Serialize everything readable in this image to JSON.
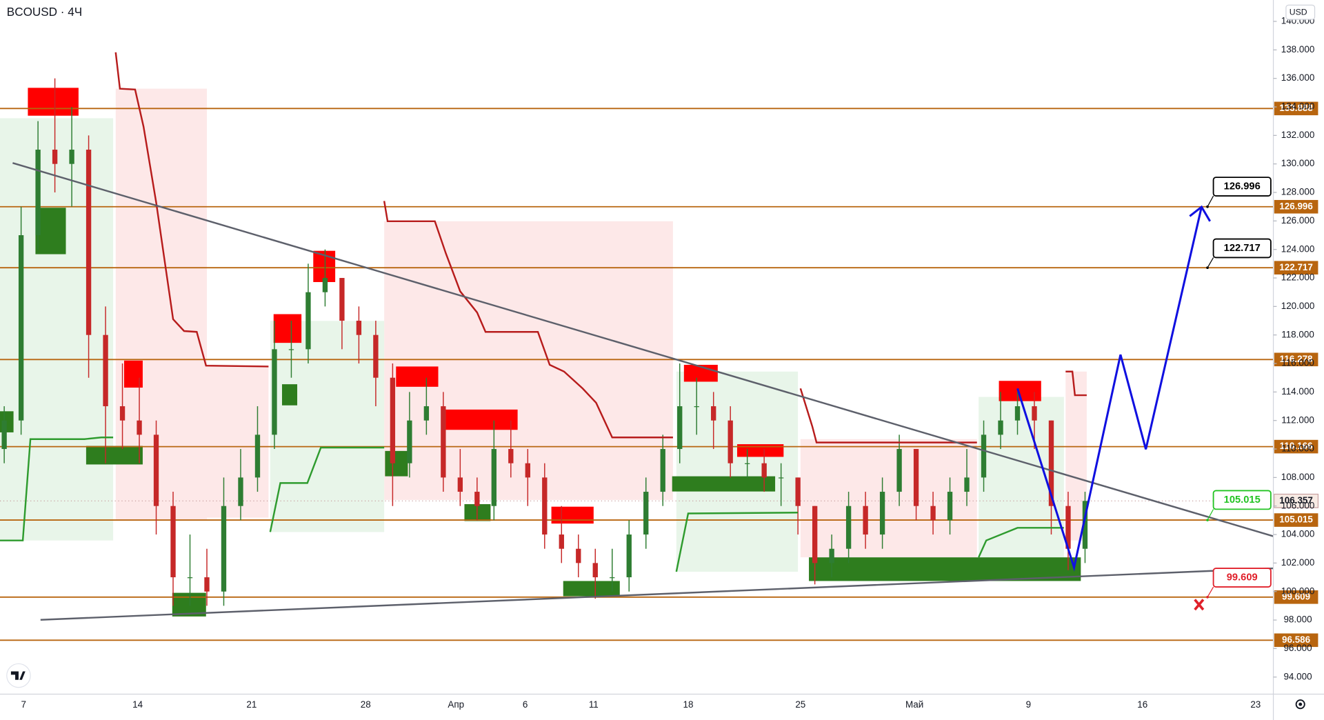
{
  "chart_data": {
    "type": "candlestick",
    "title": "BCOUSD · 4Ч",
    "currency": "USD",
    "x_labels": [
      "7",
      "14",
      "21",
      "28",
      "Апр",
      "6",
      "11",
      "18",
      "25",
      "Май",
      "9",
      "16",
      "23"
    ],
    "ylim": [
      92.8,
      141.5
    ],
    "yticks": [
      {
        "value": 94,
        "label": "94.000"
      },
      {
        "value": 96,
        "label": "96.000"
      },
      {
        "value": 98,
        "label": "98.000"
      },
      {
        "value": 100,
        "label": "100.000"
      },
      {
        "value": 102,
        "label": "102.000"
      },
      {
        "value": 104,
        "label": "104.000"
      },
      {
        "value": 106,
        "label": "106.000"
      },
      {
        "value": 108,
        "label": "108.000"
      },
      {
        "value": 110,
        "label": "110.000"
      },
      {
        "value": 112,
        "label": "112.000"
      },
      {
        "value": 114,
        "label": "114.000"
      },
      {
        "value": 116,
        "label": "116.000"
      },
      {
        "value": 118,
        "label": "118.000"
      },
      {
        "value": 120,
        "label": "120.000"
      },
      {
        "value": 122,
        "label": "122.000"
      },
      {
        "value": 124,
        "label": "124.000"
      },
      {
        "value": 126,
        "label": "126.000"
      },
      {
        "value": 128,
        "label": "128.000"
      },
      {
        "value": 130,
        "label": "130.000"
      },
      {
        "value": 132,
        "label": "132.000"
      },
      {
        "value": 134,
        "label": "134.000"
      },
      {
        "value": 136,
        "label": "136.000"
      },
      {
        "value": 138,
        "label": "138.000"
      },
      {
        "value": 140,
        "label": "140.000"
      }
    ],
    "up_color": "#2e7d32",
    "down_color": "#c62828",
    "level_color": "#b8650f",
    "ohlc": [
      [
        110,
        113,
        109,
        112
      ],
      [
        112,
        127,
        111,
        125
      ],
      [
        125,
        133,
        124,
        131
      ],
      [
        131,
        136,
        128,
        130
      ],
      [
        130,
        134,
        127,
        131
      ],
      [
        131,
        132,
        115,
        118
      ],
      [
        118,
        120,
        109,
        113
      ],
      [
        113,
        116,
        110,
        112
      ],
      [
        112,
        115,
        109,
        111
      ],
      [
        111,
        112,
        104,
        106
      ],
      [
        106,
        107,
        99,
        101
      ],
      [
        101,
        104,
        99,
        101
      ],
      [
        101,
        103,
        99,
        100
      ],
      [
        100,
        108,
        99,
        106
      ],
      [
        106,
        110,
        105,
        108
      ],
      [
        108,
        113,
        107,
        111
      ],
      [
        111,
        119,
        110,
        117
      ],
      [
        117,
        119,
        115,
        117
      ],
      [
        117,
        123,
        116,
        121
      ],
      [
        121,
        124,
        120,
        122
      ],
      [
        122,
        122,
        117,
        119
      ],
      [
        119,
        120,
        116,
        118
      ],
      [
        118,
        119,
        113,
        115
      ],
      [
        115,
        116,
        106,
        109
      ],
      [
        109,
        114,
        108,
        112
      ],
      [
        112,
        115,
        111,
        113
      ],
      [
        113,
        114,
        107,
        108
      ],
      [
        108,
        110,
        106,
        107
      ],
      [
        107,
        108,
        105,
        106
      ],
      [
        106,
        112,
        105,
        110
      ],
      [
        110,
        112,
        108,
        109
      ],
      [
        109,
        110,
        106,
        108
      ],
      [
        108,
        109,
        103,
        104
      ],
      [
        104,
        106,
        102,
        103
      ],
      [
        103,
        104,
        101,
        102
      ],
      [
        102,
        103,
        99.5,
        101
      ],
      [
        101,
        103,
        100,
        101
      ],
      [
        101,
        105,
        100,
        104
      ],
      [
        104,
        108,
        103,
        107
      ],
      [
        107,
        111,
        106,
        110
      ],
      [
        110,
        116,
        109,
        113
      ],
      [
        113,
        115,
        111,
        113
      ],
      [
        113,
        114,
        110,
        112
      ],
      [
        112,
        113,
        108,
        109
      ],
      [
        109,
        110,
        108,
        109
      ],
      [
        109,
        110,
        107,
        108
      ],
      [
        108,
        109,
        106,
        108
      ],
      [
        108,
        108,
        104,
        106
      ],
      [
        106,
        106,
        100.5,
        102
      ],
      [
        102,
        104,
        101,
        103
      ],
      [
        103,
        107,
        102,
        106
      ],
      [
        106,
        107,
        103,
        104
      ],
      [
        104,
        108,
        103,
        107
      ],
      [
        107,
        111,
        106,
        110
      ],
      [
        110,
        110,
        105,
        106
      ],
      [
        106,
        107,
        104,
        105
      ],
      [
        105,
        108,
        104,
        107
      ],
      [
        107,
        110,
        106,
        108
      ],
      [
        108,
        112,
        107,
        111
      ],
      [
        111,
        114,
        110,
        112
      ],
      [
        112,
        114,
        111,
        113
      ],
      [
        113,
        114,
        110,
        112
      ],
      [
        112,
        112,
        104,
        106
      ],
      [
        106,
        107,
        101.5,
        103
      ],
      [
        103,
        107,
        102,
        106.357
      ]
    ],
    "levels": [
      133.888,
      126.996,
      122.717,
      116.278,
      110.166,
      105.015,
      99.609,
      96.586
    ],
    "last_price": 106.357,
    "targets": [
      {
        "value": 126.996,
        "color": "#000000"
      },
      {
        "value": 122.717,
        "color": "#000000"
      },
      {
        "value": 105.015,
        "color": "#22c322"
      },
      {
        "value": 99.609,
        "color": "#e0202a"
      }
    ]
  }
}
